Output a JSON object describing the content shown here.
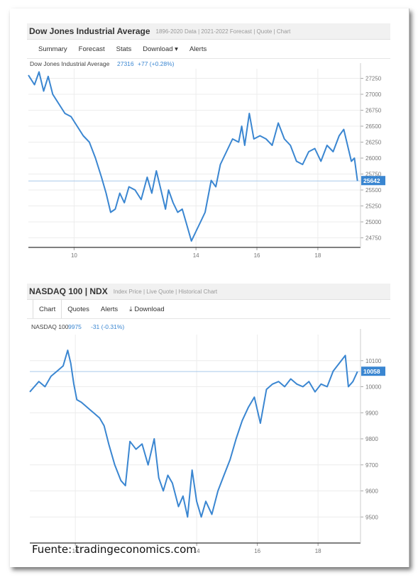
{
  "source": "Fuente: tradingeconomics.com",
  "colors": {
    "line": "#3a86d1",
    "label_bg": "#3a86d1",
    "axis_text": "#777777",
    "grid": "#ececec"
  },
  "dow": {
    "title": "Dow Jones Industrial Average",
    "subtitle": "1896-2020 Data | 2021-2022 Forecast | Quote | Chart",
    "tabs": [
      "Summary",
      "Forecast",
      "Stats",
      "Download ▾",
      "Alerts"
    ],
    "legend_name": "Dow Jones Industrial Average",
    "legend_value": "27316",
    "legend_change": "+77 (+0.28%)",
    "last_label": "25642"
  },
  "ndx": {
    "title": "NASDAQ 100 | NDX",
    "subtitle": "Index Price | Live Quote | Historical Chart",
    "tabs": [
      "Chart",
      "Quotes",
      "Alerts",
      "Download"
    ],
    "legend_name": "NASDAQ 100",
    "legend_value": "9975",
    "legend_change": "-31 (-0.31%)",
    "last_label": "10058"
  },
  "chart_data": [
    {
      "type": "line",
      "name": "Dow Jones Industrial Average",
      "xlim": [
        8.5,
        19.4
      ],
      "ylim": [
        24600,
        27400
      ],
      "xticks": [
        10,
        14,
        16,
        18
      ],
      "yticks": [
        24750,
        25000,
        25250,
        25500,
        25750,
        26000,
        26250,
        26500,
        26750,
        27000,
        27250
      ],
      "reference_line": 25642,
      "points": [
        [
          8.5,
          27300
        ],
        [
          8.7,
          27150
        ],
        [
          8.85,
          27350
        ],
        [
          9.0,
          27050
        ],
        [
          9.15,
          27280
        ],
        [
          9.3,
          27000
        ],
        [
          9.5,
          26850
        ],
        [
          9.7,
          26700
        ],
        [
          9.9,
          26650
        ],
        [
          10.1,
          26500
        ],
        [
          10.3,
          26350
        ],
        [
          10.5,
          26250
        ],
        [
          10.7,
          26000
        ],
        [
          10.9,
          25700
        ],
        [
          11.05,
          25450
        ],
        [
          11.2,
          25150
        ],
        [
          11.35,
          25200
        ],
        [
          11.5,
          25450
        ],
        [
          11.65,
          25300
        ],
        [
          11.8,
          25550
        ],
        [
          12.0,
          25500
        ],
        [
          12.2,
          25350
        ],
        [
          12.4,
          25700
        ],
        [
          12.55,
          25450
        ],
        [
          12.7,
          25800
        ],
        [
          12.85,
          25500
        ],
        [
          13.0,
          25200
        ],
        [
          13.1,
          25500
        ],
        [
          13.25,
          25300
        ],
        [
          13.4,
          25150
        ],
        [
          13.55,
          25200
        ],
        [
          13.7,
          24950
        ],
        [
          13.85,
          24700
        ],
        [
          14.0,
          24850
        ],
        [
          14.15,
          25000
        ],
        [
          14.3,
          25150
        ],
        [
          14.5,
          25650
        ],
        [
          14.65,
          25550
        ],
        [
          14.8,
          25900
        ],
        [
          15.0,
          26100
        ],
        [
          15.2,
          26300
        ],
        [
          15.4,
          26250
        ],
        [
          15.5,
          26500
        ],
        [
          15.6,
          26200
        ],
        [
          15.75,
          26700
        ],
        [
          15.9,
          26300
        ],
        [
          16.1,
          26350
        ],
        [
          16.3,
          26300
        ],
        [
          16.5,
          26200
        ],
        [
          16.7,
          26550
        ],
        [
          16.9,
          26300
        ],
        [
          17.1,
          26200
        ],
        [
          17.3,
          25950
        ],
        [
          17.5,
          25900
        ],
        [
          17.7,
          26100
        ],
        [
          17.9,
          26150
        ],
        [
          18.1,
          25950
        ],
        [
          18.3,
          26200
        ],
        [
          18.5,
          26100
        ],
        [
          18.7,
          26350
        ],
        [
          18.85,
          26450
        ],
        [
          19.0,
          26150
        ],
        [
          19.1,
          25950
        ],
        [
          19.2,
          26000
        ],
        [
          19.3,
          25642
        ]
      ]
    },
    {
      "type": "line",
      "name": "NASDAQ 100",
      "xlim": [
        8.5,
        19.4
      ],
      "ylim": [
        9400,
        10200
      ],
      "xticks": [
        10,
        14,
        16,
        18
      ],
      "yticks": [
        9500,
        9600,
        9700,
        9800,
        9900,
        10000,
        10100
      ],
      "reference_line": 10058,
      "points": [
        [
          8.5,
          9980
        ],
        [
          8.65,
          10000
        ],
        [
          8.8,
          10020
        ],
        [
          9.0,
          10000
        ],
        [
          9.2,
          10040
        ],
        [
          9.4,
          10060
        ],
        [
          9.6,
          10080
        ],
        [
          9.75,
          10140
        ],
        [
          9.85,
          10090
        ],
        [
          9.95,
          10010
        ],
        [
          10.05,
          9950
        ],
        [
          10.2,
          9940
        ],
        [
          10.4,
          9920
        ],
        [
          10.6,
          9900
        ],
        [
          10.8,
          9880
        ],
        [
          10.95,
          9850
        ],
        [
          11.1,
          9780
        ],
        [
          11.3,
          9700
        ],
        [
          11.5,
          9640
        ],
        [
          11.65,
          9620
        ],
        [
          11.8,
          9790
        ],
        [
          12.0,
          9760
        ],
        [
          12.2,
          9780
        ],
        [
          12.4,
          9700
        ],
        [
          12.6,
          9800
        ],
        [
          12.75,
          9650
        ],
        [
          12.9,
          9600
        ],
        [
          13.05,
          9660
        ],
        [
          13.2,
          9630
        ],
        [
          13.4,
          9540
        ],
        [
          13.55,
          9580
        ],
        [
          13.7,
          9500
        ],
        [
          13.85,
          9680
        ],
        [
          14.0,
          9560
        ],
        [
          14.15,
          9500
        ],
        [
          14.3,
          9560
        ],
        [
          14.5,
          9510
        ],
        [
          14.7,
          9600
        ],
        [
          14.9,
          9660
        ],
        [
          15.1,
          9720
        ],
        [
          15.3,
          9800
        ],
        [
          15.5,
          9870
        ],
        [
          15.7,
          9920
        ],
        [
          15.9,
          9960
        ],
        [
          16.1,
          9860
        ],
        [
          16.3,
          9990
        ],
        [
          16.5,
          10010
        ],
        [
          16.7,
          10020
        ],
        [
          16.9,
          10000
        ],
        [
          17.1,
          10030
        ],
        [
          17.3,
          10010
        ],
        [
          17.5,
          10000
        ],
        [
          17.7,
          10020
        ],
        [
          17.9,
          9980
        ],
        [
          18.1,
          10010
        ],
        [
          18.3,
          10000
        ],
        [
          18.5,
          10060
        ],
        [
          18.7,
          10090
        ],
        [
          18.9,
          10120
        ],
        [
          19.0,
          10000
        ],
        [
          19.15,
          10020
        ],
        [
          19.3,
          10058
        ]
      ]
    }
  ]
}
